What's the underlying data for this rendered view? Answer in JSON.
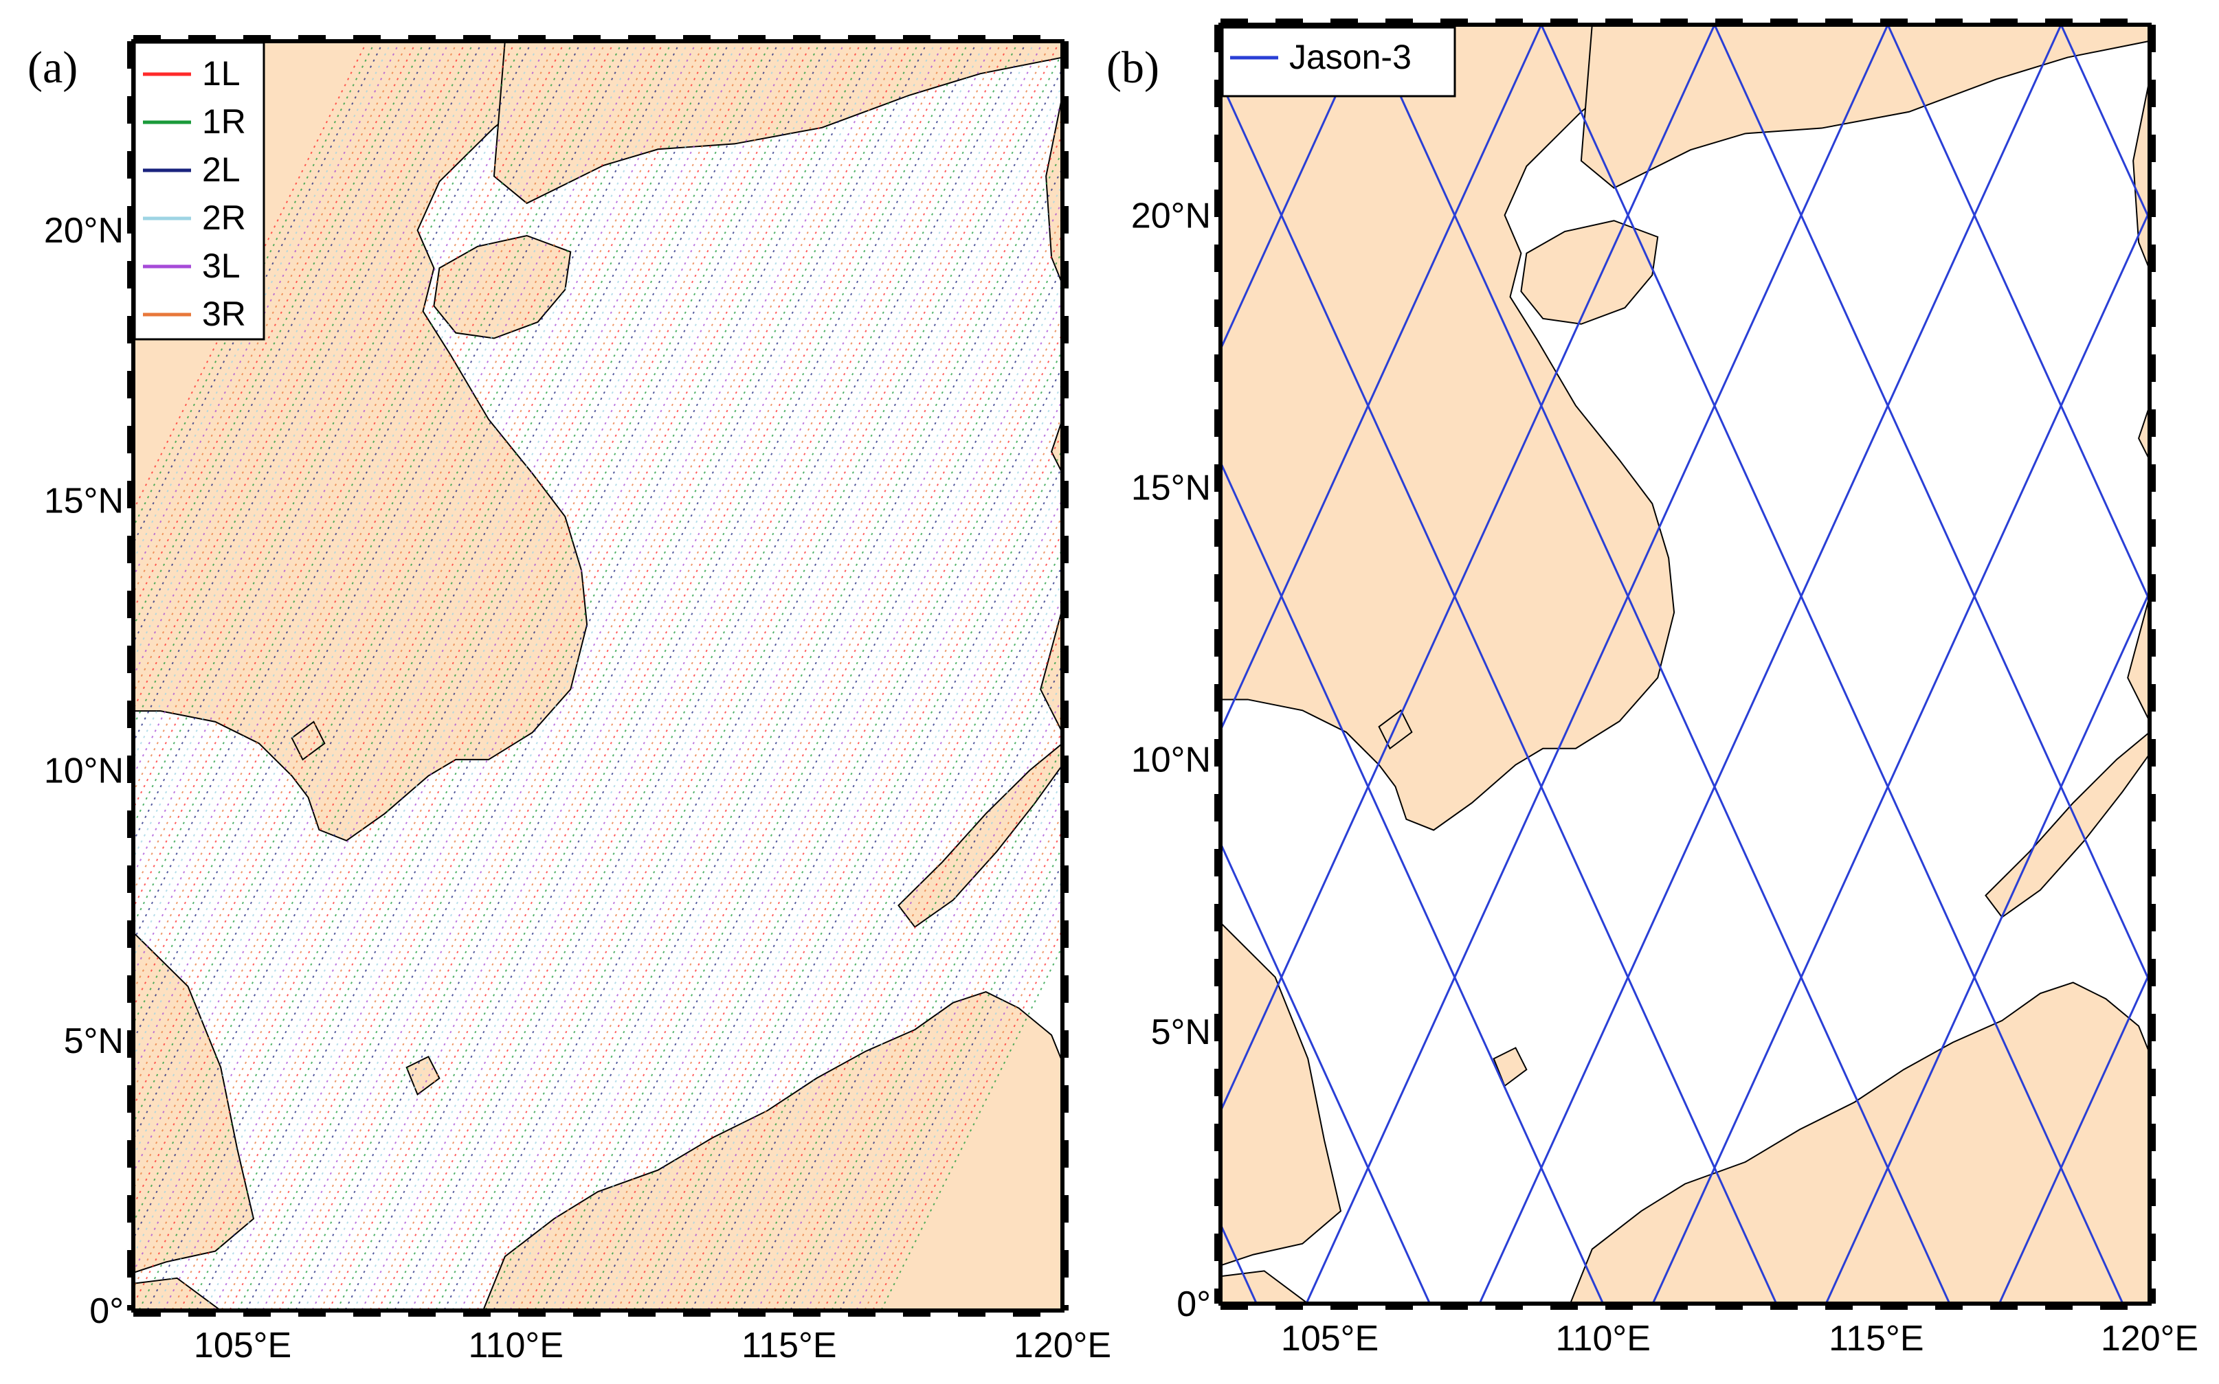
{
  "figure": {
    "panels": [
      {
        "label": "(a)",
        "legend": [
          {
            "name": "1L",
            "color": "#ff2a2a"
          },
          {
            "name": "1R",
            "color": "#1a9a3a"
          },
          {
            "name": "2L",
            "color": "#1a237e"
          },
          {
            "name": "2R",
            "color": "#9ed4e4"
          },
          {
            "name": "3L",
            "color": "#a64bd8"
          },
          {
            "name": "3R",
            "color": "#e8783a"
          }
        ]
      },
      {
        "label": "(b)",
        "legend": [
          {
            "name": "Jason-3",
            "color": "#2a3fd6"
          }
        ]
      }
    ],
    "axes": {
      "lon_range": [
        103,
        120
      ],
      "lat_range": [
        0,
        23.5
      ],
      "x_ticks": [
        {
          "value": 105,
          "label": "105°E"
        },
        {
          "value": 110,
          "label": "110°E"
        },
        {
          "value": 115,
          "label": "115°E"
        },
        {
          "value": 120,
          "label": "120°E"
        }
      ],
      "y_ticks": [
        {
          "value": 0,
          "label": "0°"
        },
        {
          "value": 5,
          "label": "5°N"
        },
        {
          "value": 10,
          "label": "10°N"
        },
        {
          "value": 15,
          "label": "15°N"
        },
        {
          "value": 20,
          "label": "20°N"
        }
      ]
    },
    "colors": {
      "land": "#fde0c0",
      "ocean": "#ffffff",
      "coastline": "#000000",
      "frame": "#000000"
    }
  }
}
